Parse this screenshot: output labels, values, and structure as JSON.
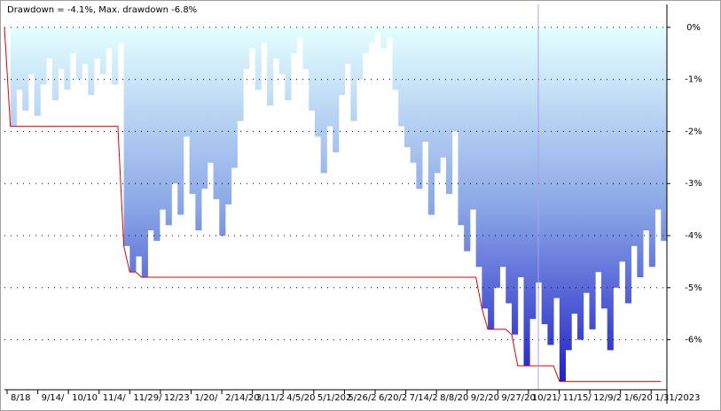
{
  "chart_data": {
    "type": "drawdown",
    "title": "Drawdown = -4.1%, Max. drawdown -6.8%",
    "x_labels": [
      "8/18",
      "9/14/",
      "10/10",
      "11/4/",
      "11/29/",
      "12/23",
      "1/20/",
      "2/14/20",
      "3/11/2",
      "4/5/20",
      "5/1/202",
      "5/26/2",
      "6/20/2",
      "7/14/2",
      "8/8/20",
      "9/2/20",
      "9/27/20",
      "10/21/",
      "11/15/",
      "12/9/2",
      "1/6/20",
      "1/31/2023"
    ],
    "ylim": [
      -6.96,
      0.44
    ],
    "yticks": [
      {
        "value": 0,
        "label": "0%"
      },
      {
        "value": -1,
        "label": "-1%"
      },
      {
        "value": -2,
        "label": "-2%"
      },
      {
        "value": -3,
        "label": "-3%"
      },
      {
        "value": -4,
        "label": "-4%"
      },
      {
        "value": -5,
        "label": "-5%"
      },
      {
        "value": -6,
        "label": "-6%"
      }
    ],
    "grid": true,
    "series": [
      {
        "name": "Drawdown",
        "color": "#2a2ad0",
        "values": [
          0,
          -1.9,
          -1.2,
          -1.6,
          -0.9,
          -1.7,
          -1.1,
          -0.6,
          -1.4,
          -0.8,
          -1.2,
          -0.5,
          -1.0,
          -0.7,
          -1.3,
          -0.6,
          -0.9,
          -0.4,
          -1.1,
          -0.3,
          -4.2,
          -4.7,
          -4.4,
          -4.8,
          -3.9,
          -4.1,
          -3.5,
          -3.8,
          -3.0,
          -3.6,
          -2.1,
          -3.2,
          -3.9,
          -3.1,
          -2.6,
          -3.3,
          -4.0,
          -3.4,
          -2.7,
          -1.8,
          -0.8,
          -0.4,
          -1.2,
          -0.3,
          -1.5,
          -0.6,
          -0.9,
          -1.4,
          -0.5,
          -0.2,
          -0.8,
          -1.6,
          -2.1,
          -2.8,
          -1.9,
          -2.4,
          -1.3,
          -0.7,
          -1.8,
          -1.0,
          -0.5,
          -0.3,
          -0.1,
          -0.4,
          -0.2,
          -1.2,
          -1.9,
          -2.3,
          -2.6,
          -3.1,
          -2.2,
          -3.6,
          -2.8,
          -2.5,
          -3.2,
          -2.0,
          -3.8,
          -4.3,
          -3.5,
          -4.6,
          -5.4,
          -5.8,
          -5.0,
          -4.6,
          -5.3,
          -5.9,
          -4.8,
          -6.5,
          -5.6,
          -4.9,
          -5.7,
          -6.1,
          -5.2,
          -6.8,
          -6.2,
          -5.5,
          -6.0,
          -5.1,
          -5.8,
          -4.7,
          -5.4,
          -6.2,
          -5.0,
          -4.5,
          -5.3,
          -4.2,
          -4.8,
          -3.9,
          -4.6,
          -3.5,
          -4.1
        ]
      },
      {
        "name": "Max. drawdown",
        "color": "#e00000",
        "values": [
          0,
          -1.9,
          -1.9,
          -1.9,
          -1.9,
          -1.9,
          -1.9,
          -1.9,
          -1.9,
          -1.9,
          -1.9,
          -1.9,
          -1.9,
          -1.9,
          -1.9,
          -1.9,
          -1.9,
          -1.9,
          -1.9,
          -1.9,
          -4.2,
          -4.7,
          -4.7,
          -4.8,
          -4.8,
          -4.8,
          -4.8,
          -4.8,
          -4.8,
          -4.8,
          -4.8,
          -4.8,
          -4.8,
          -4.8,
          -4.8,
          -4.8,
          -4.8,
          -4.8,
          -4.8,
          -4.8,
          -4.8,
          -4.8,
          -4.8,
          -4.8,
          -4.8,
          -4.8,
          -4.8,
          -4.8,
          -4.8,
          -4.8,
          -4.8,
          -4.8,
          -4.8,
          -4.8,
          -4.8,
          -4.8,
          -4.8,
          -4.8,
          -4.8,
          -4.8,
          -4.8,
          -4.8,
          -4.8,
          -4.8,
          -4.8,
          -4.8,
          -4.8,
          -4.8,
          -4.8,
          -4.8,
          -4.8,
          -4.8,
          -4.8,
          -4.8,
          -4.8,
          -4.8,
          -4.8,
          -4.8,
          -4.8,
          -4.8,
          -5.4,
          -5.8,
          -5.8,
          -5.8,
          -5.8,
          -5.9,
          -6.5,
          -6.5,
          -6.5,
          -6.5,
          -6.5,
          -6.5,
          -6.5,
          -6.8,
          -6.8,
          -6.8,
          -6.8,
          -6.8,
          -6.8,
          -6.8,
          -6.8,
          -6.8,
          -6.8,
          -6.8,
          -6.8,
          -6.8,
          -6.8,
          -6.8,
          -6.8,
          -6.8,
          -6.8
        ]
      }
    ]
  }
}
